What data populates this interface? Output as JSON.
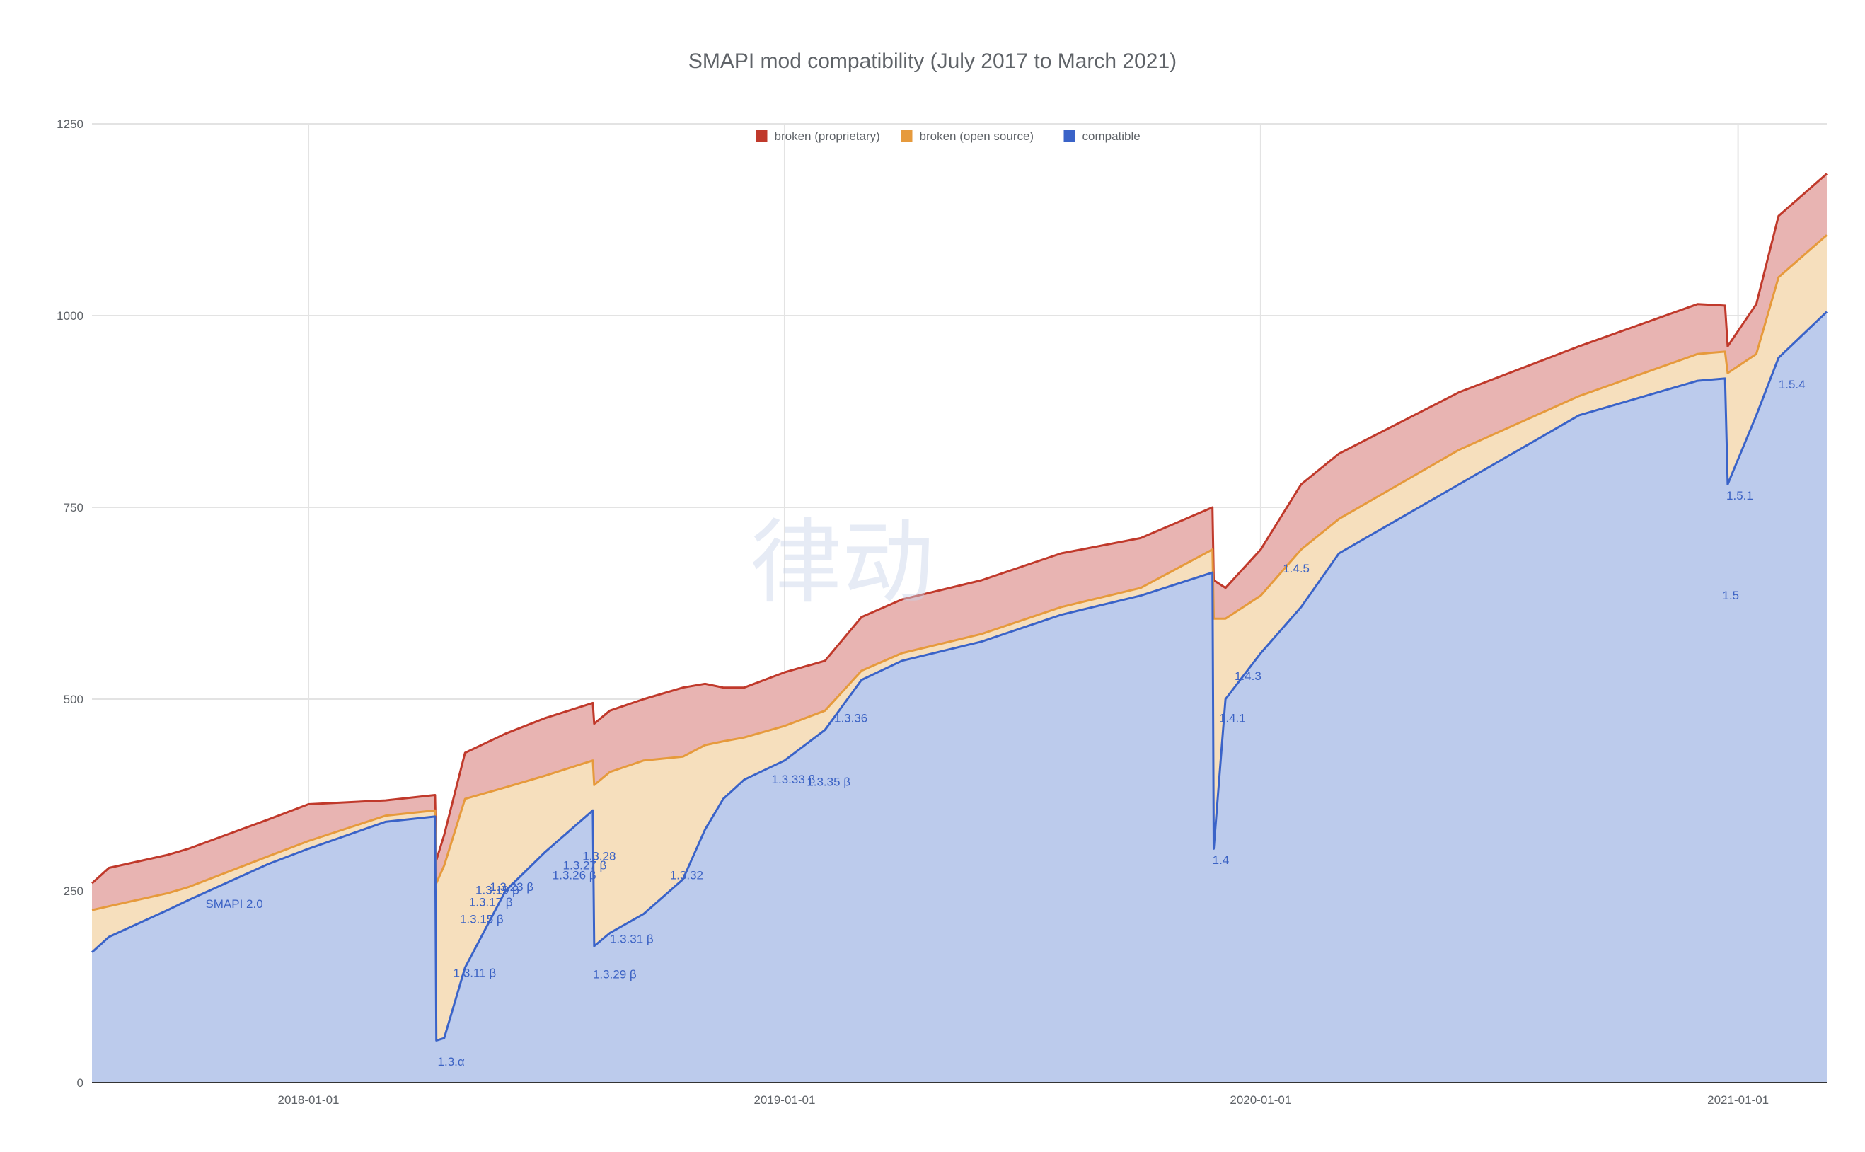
{
  "chart_data": {
    "type": "area",
    "stacked": true,
    "title": "SMAPI mod compatibility (July 2017 to March 2021)",
    "xlabel": "",
    "ylabel": "",
    "x_range": [
      "2017-07-19",
      "2021-03-10"
    ],
    "ylim": [
      0,
      1250
    ],
    "y_ticks": [
      0,
      250,
      500,
      750,
      1000,
      1250
    ],
    "y_tick_labels": [
      "0",
      "250",
      "500",
      "750",
      "1000",
      "1250"
    ],
    "x_ticks": [
      "2018-01-01",
      "2019-01-01",
      "2020-01-01",
      "2021-01-01"
    ],
    "x_tick_labels": [
      "2018-01-01",
      "2019-01-01",
      "2020-01-01",
      "2021-01-01"
    ],
    "grid": true,
    "legend_position": "top-center",
    "colors": {
      "broken_proprietary": "#c0392b",
      "broken_proprietary_fill": "#e8b4b2",
      "broken_open_source": "#e69a3c",
      "broken_open_source_fill": "#f6dfbd",
      "compatible": "#3a63c8",
      "compatible_fill": "#bccbec",
      "grid": "#e3e3e3",
      "axis": "#333333"
    },
    "series": [
      {
        "name": "broken (proprietary)",
        "key": "broken_proprietary"
      },
      {
        "name": "broken (open source)",
        "key": "broken_open_source"
      },
      {
        "name": "compatible",
        "key": "compatible"
      }
    ],
    "x": [
      "2017-07-19",
      "2017-08-01",
      "2017-09-15",
      "2017-10-01",
      "2017-12-01",
      "2018-01-01",
      "2018-03-01",
      "2018-04-08",
      "2018-04-09",
      "2018-04-15",
      "2018-05-01",
      "2018-06-01",
      "2018-07-01",
      "2018-08-07",
      "2018-08-08",
      "2018-08-20",
      "2018-09-15",
      "2018-10-15",
      "2018-11-01",
      "2018-11-15",
      "2018-12-01",
      "2019-01-01",
      "2019-02-01",
      "2019-03-01",
      "2019-04-01",
      "2019-06-01",
      "2019-08-01",
      "2019-10-01",
      "2019-11-25",
      "2019-11-26",
      "2019-12-05",
      "2020-01-01",
      "2020-02-01",
      "2020-03-01",
      "2020-06-01",
      "2020-09-01",
      "2020-12-01",
      "2020-12-22",
      "2020-12-24",
      "2021-01-15",
      "2021-02-01",
      "2021-03-10"
    ],
    "compatible": [
      170,
      190,
      225,
      238,
      285,
      305,
      340,
      347,
      55,
      58,
      150,
      250,
      300,
      355,
      178,
      195,
      220,
      265,
      330,
      370,
      395,
      420,
      460,
      525,
      550,
      575,
      610,
      635,
      665,
      305,
      500,
      560,
      620,
      690,
      780,
      870,
      915,
      918,
      780,
      870,
      945,
      1005
    ],
    "broken_open_source": [
      55,
      40,
      22,
      17,
      10,
      10,
      8,
      8,
      205,
      225,
      220,
      135,
      100,
      65,
      210,
      210,
      200,
      160,
      110,
      75,
      55,
      45,
      25,
      12,
      10,
      10,
      10,
      10,
      30,
      300,
      105,
      75,
      75,
      45,
      45,
      25,
      35,
      35,
      145,
      80,
      105,
      100
    ],
    "broken_proprietary": [
      35,
      50,
      50,
      50,
      48,
      48,
      20,
      20,
      30,
      40,
      60,
      70,
      75,
      75,
      80,
      80,
      80,
      90,
      80,
      70,
      65,
      70,
      65,
      70,
      70,
      70,
      70,
      65,
      55,
      50,
      40,
      60,
      85,
      85,
      75,
      65,
      65,
      60,
      35,
      65,
      80,
      80
    ],
    "annotations": [
      {
        "label": "SMAPI 2.0",
        "x": "2017-10-14",
        "y": 228
      },
      {
        "label": "1.3.α",
        "x": "2018-04-10",
        "y": 22
      },
      {
        "label": "1.3.11 β",
        "x": "2018-04-22",
        "y": 138
      },
      {
        "label": "1.3.15 β",
        "x": "2018-04-27",
        "y": 208
      },
      {
        "label": "1.3.17 β",
        "x": "2018-05-04",
        "y": 230
      },
      {
        "label": "1.3.19 β",
        "x": "2018-05-09",
        "y": 246
      },
      {
        "label": "1.3.23 β",
        "x": "2018-05-20",
        "y": 250
      },
      {
        "label": "1.3.26 β",
        "x": "2018-07-07",
        "y": 265
      },
      {
        "label": "1.3.27 β",
        "x": "2018-07-15",
        "y": 278
      },
      {
        "label": "1.3.28",
        "x": "2018-07-30",
        "y": 290
      },
      {
        "label": "1.3.29 β",
        "x": "2018-08-07",
        "y": 136
      },
      {
        "label": "1.3.31 β",
        "x": "2018-08-20",
        "y": 182
      },
      {
        "label": "1.3.32",
        "x": "2018-10-05",
        "y": 265
      },
      {
        "label": "1.3.33 β",
        "x": "2018-12-22",
        "y": 390
      },
      {
        "label": "1.3.35 β",
        "x": "2019-01-18",
        "y": 387
      },
      {
        "label": "1.3.36",
        "x": "2019-02-08",
        "y": 470
      },
      {
        "label": "1.4",
        "x": "2019-11-25",
        "y": 285
      },
      {
        "label": "1.4.1",
        "x": "2019-11-30",
        "y": 470
      },
      {
        "label": "1.4.3",
        "x": "2019-12-12",
        "y": 525
      },
      {
        "label": "1.4.5",
        "x": "2020-01-18",
        "y": 665
      },
      {
        "label": "1.5",
        "x": "2020-12-20",
        "y": 630
      },
      {
        "label": "1.5.1",
        "x": "2020-12-23",
        "y": 760
      },
      {
        "label": "1.5.4",
        "x": "2021-02-01",
        "y": 905
      }
    ]
  },
  "watermark": "律动"
}
